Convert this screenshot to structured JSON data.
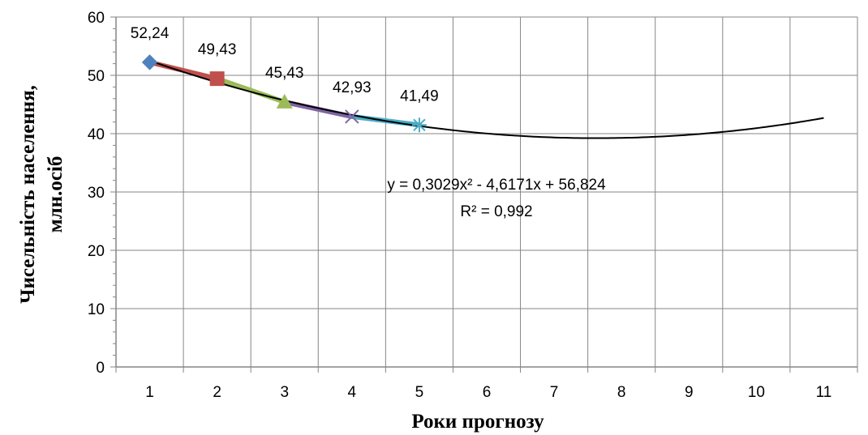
{
  "chart_data": {
    "type": "line",
    "title": "",
    "xlabel": "Роки прогнозу",
    "ylabel_lines": [
      "Чисельність населення,",
      "млн.осіб"
    ],
    "x_ticks": [
      1,
      2,
      3,
      4,
      5,
      6,
      7,
      8,
      9,
      10,
      11
    ],
    "y_ticks": [
      0,
      10,
      20,
      30,
      40,
      50,
      60
    ],
    "xlim": [
      0.5,
      11.5
    ],
    "ylim": [
      0,
      60
    ],
    "grid": true,
    "points": [
      {
        "x": 1,
        "y": 52.24,
        "label": "52,24",
        "color": "#4f81bd",
        "marker": "diamond"
      },
      {
        "x": 2,
        "y": 49.43,
        "label": "49,43",
        "color": "#c0504d",
        "marker": "square"
      },
      {
        "x": 3,
        "y": 45.43,
        "label": "45,43",
        "color": "#9bbb59",
        "marker": "triangle"
      },
      {
        "x": 4,
        "y": 42.93,
        "label": "42,93",
        "color": "#8064a2",
        "marker": "x"
      },
      {
        "x": 5,
        "y": 41.49,
        "label": "41,49",
        "color": "#4bacc6",
        "marker": "star"
      }
    ],
    "trendline": {
      "type": "polynomial",
      "coefficients": {
        "a": 0.3029,
        "b": -4.6171,
        "c": 56.824
      },
      "x_range": [
        1,
        11
      ],
      "color": "#000000",
      "equation": "y = 0,3029x² - 4,6171x + 56,824",
      "r_squared": "R² = 0,992"
    }
  }
}
